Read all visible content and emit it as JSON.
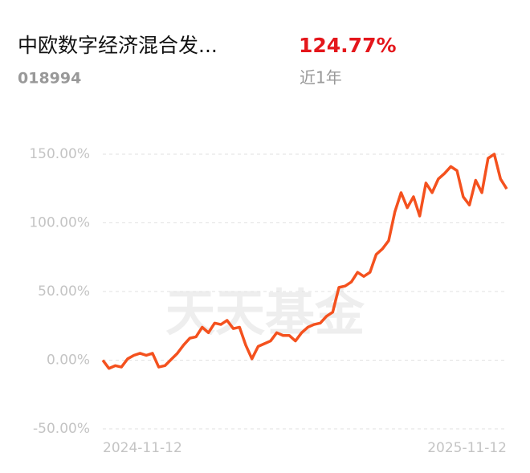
{
  "fund": {
    "name": "中欧数字经济混合发...",
    "code": "018994",
    "return": "124.77%",
    "period": "近1年"
  },
  "watermark": "天天基金",
  "chart_data": {
    "type": "line",
    "categories": [
      "2024-11-12",
      null,
      null,
      null,
      null,
      null,
      null,
      null,
      null,
      null,
      null,
      null,
      null,
      null,
      null,
      null,
      null,
      null,
      null,
      null,
      null,
      null,
      null,
      null,
      null,
      null,
      null,
      null,
      null,
      null,
      null,
      null,
      null,
      null,
      null,
      null,
      null,
      null,
      null,
      null,
      null,
      null,
      null,
      null,
      null,
      null,
      null,
      null,
      null,
      null,
      null,
      null,
      null,
      null,
      null,
      null,
      null,
      null,
      null,
      null,
      null,
      null,
      null,
      null,
      null,
      "2025-11-12"
    ],
    "series": [
      {
        "name": "近1年",
        "color": "#f4511e",
        "values": [
          0,
          -6,
          -4,
          -5,
          1,
          3.5,
          5,
          3.5,
          5,
          -5,
          -4,
          0.5,
          5,
          11,
          16,
          17,
          24,
          20,
          27,
          26,
          29,
          23,
          24,
          11,
          1,
          10,
          12,
          14,
          20,
          18,
          18,
          14,
          20,
          24,
          26,
          27,
          32,
          35,
          53,
          54,
          57,
          64,
          61,
          64,
          77,
          81,
          87,
          108,
          122,
          111,
          119,
          105,
          129,
          122,
          132,
          136,
          141,
          138,
          119,
          113,
          131,
          122,
          147,
          150,
          132,
          124.77
        ]
      }
    ],
    "ylim": [
      -50,
      150
    ],
    "yticks": [
      {
        "value": -50,
        "label": "-50.00%"
      },
      {
        "value": 0,
        "label": "0.00%"
      },
      {
        "value": 50,
        "label": "50.00%"
      },
      {
        "value": 100,
        "label": "100.00%"
      },
      {
        "value": 150,
        "label": "150.00%"
      }
    ],
    "grid": true
  }
}
